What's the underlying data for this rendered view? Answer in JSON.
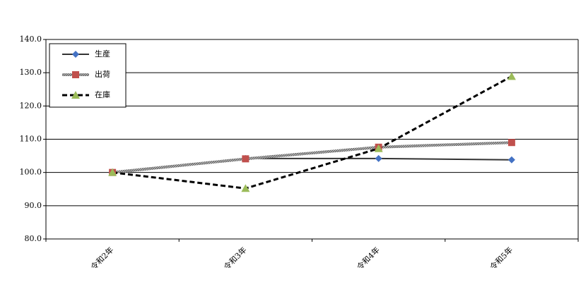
{
  "chart_data": {
    "type": "line",
    "categories": [
      "令和2年",
      "令和3年",
      "令和4年",
      "令和5年"
    ],
    "series": [
      {
        "name": "生産",
        "color": "#333333",
        "marker": "diamond",
        "marker_color": "#4472c4",
        "dash": "solid",
        "values": [
          100.0,
          104.2,
          104.2,
          103.8
        ]
      },
      {
        "name": "出荷",
        "color": "#9a9a9a",
        "marker": "square",
        "marker_color": "#c0504d",
        "dash": "hatched",
        "values": [
          100.0,
          104.1,
          107.6,
          109.0
        ]
      },
      {
        "name": "在庫",
        "color": "#000000",
        "marker": "triangle",
        "marker_color": "#9bbb59",
        "dash": "dashed",
        "values": [
          100.0,
          95.2,
          107.2,
          128.9
        ]
      }
    ],
    "ylim": [
      80,
      140
    ],
    "yticks": [
      {
        "value": 80,
        "label": "80.0"
      },
      {
        "value": 90,
        "label": "90.0"
      },
      {
        "value": 100,
        "label": "100.0"
      },
      {
        "value": 110,
        "label": "110.0"
      },
      {
        "value": 120,
        "label": "120.0"
      },
      {
        "value": 130,
        "label": "130.0"
      },
      {
        "value": 140,
        "label": "140.0"
      }
    ],
    "grid": true,
    "legend": "top-left"
  }
}
